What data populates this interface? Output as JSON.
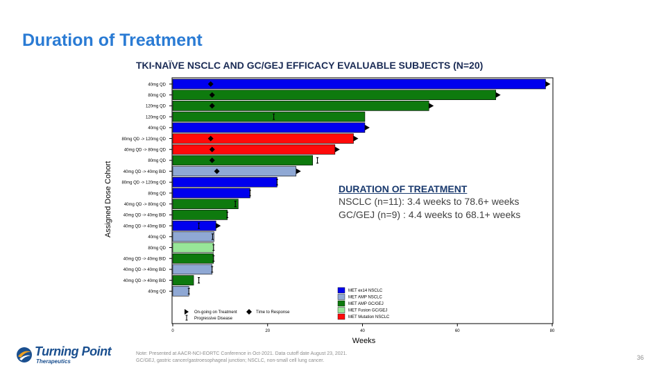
{
  "slide": {
    "title": "Duration of Treatment",
    "page_number": "36",
    "note_line1": "Note: Presented at AACR-NCI-EORTC Conference in Oct-2021. Data cutoff date August 23, 2021.",
    "note_line2": "GC/GEJ, gastric cancer/gastroesophageal junction; NSCLC, non-small cell lung cancer."
  },
  "logo": {
    "name": "Turning Point",
    "sub": "Therapeutics"
  },
  "summary": {
    "header": "DURATION OF TREATMENT",
    "nsclc": "NSCLC (n=11): 3.4 weeks to 78.6+ weeks",
    "gcgej": "GC/GEJ (n=9) : 4.4 weeks to 68.1+ weeks"
  },
  "chart_data": {
    "type": "bar",
    "orientation": "horizontal",
    "title": "TKI-NAÏVE NSCLC AND GC/GEJ EFFICACY EVALUABLE SUBJECTS (N=20)",
    "xlabel": "Weeks",
    "ylabel": "Assigned Dose Cohort",
    "xlim": [
      0,
      80
    ],
    "xticks": [
      0,
      20,
      40,
      60,
      80
    ],
    "colors": {
      "MET ex14 NSCLC": "#0000ee",
      "MET AMP NSCLC": "#8fa8d4",
      "MET AMP GC/GEJ": "#0e7a0e",
      "MET Fusion GC/GEJ": "#98e698",
      "MET Mutation NSCLC": "#ff0a0a"
    },
    "legend": [
      "MET ex14 NSCLC",
      "MET AMP NSCLC",
      "MET AMP GC/GEJ",
      "MET Fusion GC/GEJ",
      "MET Mutation NSCLC"
    ],
    "marker_legend": {
      "ongoing": "On-going on Treatment",
      "progressive": "Progressive Disease",
      "response": "Time to Response"
    },
    "bars": [
      {
        "label": "40mg QD",
        "group": "MET ex14 NSCLC",
        "weeks": 78.6,
        "ongoing": true,
        "response": 8
      },
      {
        "label": "80mg QD",
        "group": "MET AMP GC/GEJ",
        "weeks": 68.1,
        "ongoing": true,
        "response": 8.3
      },
      {
        "label": "120mg QD",
        "group": "MET AMP GC/GEJ",
        "weeks": 54,
        "ongoing": true,
        "response": 8.3
      },
      {
        "label": "120mg QD",
        "group": "MET AMP GC/GEJ",
        "weeks": 40.5,
        "pd": 21.3
      },
      {
        "label": "40mg QD",
        "group": "MET ex14 NSCLC",
        "weeks": 40.5,
        "ongoing": true
      },
      {
        "label": "80mg QD -> 120mg QD",
        "group": "MET Mutation NSCLC",
        "weeks": 38.1,
        "ongoing": true,
        "response": 8
      },
      {
        "label": "40mg QD -> 80mg QD",
        "group": "MET Mutation NSCLC",
        "weeks": 34.2,
        "ongoing": true,
        "response": 8.3
      },
      {
        "label": "80mg QD",
        "group": "MET AMP GC/GEJ",
        "weeks": 29.5,
        "pd": 30.5,
        "response": 8.3
      },
      {
        "label": "40mg QD -> 40mg BID",
        "group": "MET AMP NSCLC",
        "weeks": 26,
        "ongoing": true,
        "response": 9.3
      },
      {
        "label": "80mg QD -> 120mg QD",
        "group": "MET ex14 NSCLC",
        "weeks": 22,
        "pd": 22
      },
      {
        "label": "80mg QD",
        "group": "MET ex14 NSCLC",
        "weeks": 16.3,
        "pd": 16.3
      },
      {
        "label": "40mg QD -> 80mg QD",
        "group": "MET AMP GC/GEJ",
        "weeks": 13.8,
        "pd": 13.2
      },
      {
        "label": "40mg QD -> 40mg BID",
        "group": "MET AMP GC/GEJ",
        "weeks": 11.5,
        "pd": 11.5
      },
      {
        "label": "40mg QD -> 40mg BID",
        "group": "MET ex14 NSCLC",
        "weeks": 9.1,
        "ongoing": true,
        "pd": 5.5
      },
      {
        "label": "40mg QD",
        "group": "MET AMP NSCLC",
        "weeks": 8.7,
        "pd": 8.4
      },
      {
        "label": "80mg QD",
        "group": "MET Fusion GC/GEJ",
        "weeks": 8.6,
        "pd": 8.6
      },
      {
        "label": "40mg QD -> 40mg BID",
        "group": "MET AMP GC/GEJ",
        "weeks": 8.6,
        "pd": 8.6
      },
      {
        "label": "40mg QD -> 40mg BID",
        "group": "MET AMP NSCLC",
        "weeks": 8.3,
        "pd": 8.3
      },
      {
        "label": "40mg QD -> 40mg BID",
        "group": "MET AMP GC/GEJ",
        "weeks": 4.4,
        "pd": 5.5
      },
      {
        "label": "40mg QD",
        "group": "MET AMP NSCLC",
        "weeks": 3.4,
        "pd": 3.4
      }
    ]
  }
}
